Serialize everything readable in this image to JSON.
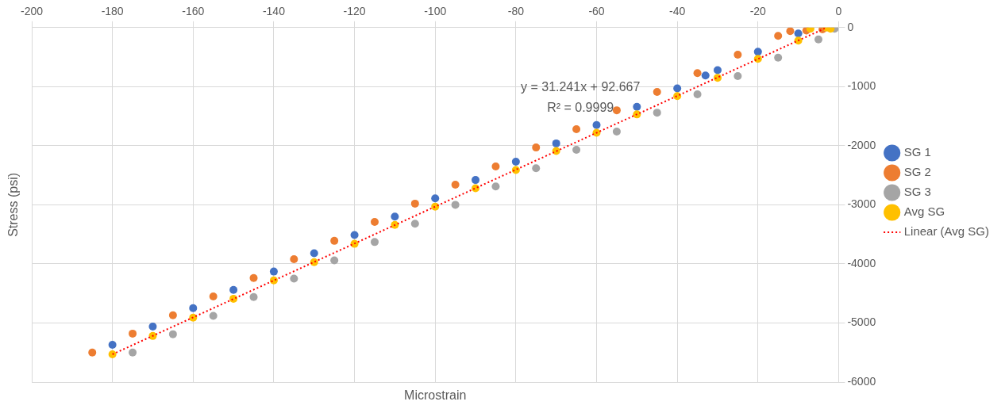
{
  "chart_data": {
    "type": "scatter",
    "xlabel": "Microstrain",
    "ylabel": "Stress (psi)",
    "xlim": [
      -200,
      0
    ],
    "xticks": [
      -200,
      -180,
      -160,
      -140,
      -120,
      -100,
      -80,
      -60,
      -40,
      -20,
      0
    ],
    "ylim": [
      -6000,
      0
    ],
    "yticks": [
      -6000,
      -5000,
      -4000,
      -3000,
      -2000,
      -1000,
      0
    ],
    "grid": true,
    "legend": "right",
    "marker": "circle",
    "annotations": [
      "y = 31.241x + 92.667",
      "R² = 0.9999"
    ],
    "series": [
      {
        "name": "SG 1",
        "color": "#4472c4",
        "x": [
          -180,
          -170,
          -160,
          -150,
          -140,
          -130,
          -120,
          -110,
          -100,
          -90,
          -80,
          -70,
          -60,
          -50,
          -40,
          -33,
          -30,
          -20,
          -10
        ],
        "values": [
          -5370,
          -5060,
          -4750,
          -4440,
          -4130,
          -3820,
          -3510,
          -3200,
          -2890,
          -2580,
          -2270,
          -1960,
          -1650,
          -1340,
          -1030,
          -810,
          -720,
          -410,
          -100
        ]
      },
      {
        "name": "SG 2",
        "color": "#ed7d31",
        "x": [
          -185,
          -175,
          -165,
          -155,
          -145,
          -135,
          -125,
          -115,
          -105,
          -95,
          -85,
          -75,
          -65,
          -55,
          -45,
          -35,
          -25,
          -15,
          -12,
          -8,
          -4
        ],
        "values": [
          -5500,
          -5180,
          -4870,
          -4550,
          -4240,
          -3920,
          -3610,
          -3290,
          -2980,
          -2660,
          -2350,
          -2030,
          -1720,
          -1400,
          -1090,
          -770,
          -460,
          -140,
          -60,
          -50,
          -30
        ]
      },
      {
        "name": "SG 3",
        "color": "#a5a5a5",
        "x": [
          -175,
          -165,
          -155,
          -145,
          -135,
          -125,
          -115,
          -105,
          -95,
          -85,
          -75,
          -65,
          -55,
          -45,
          -35,
          -25,
          -15,
          -5,
          -1
        ],
        "values": [
          -5500,
          -5190,
          -4880,
          -4560,
          -4250,
          -3940,
          -3630,
          -3320,
          -3000,
          -2690,
          -2380,
          -2070,
          -1760,
          -1440,
          -1130,
          -820,
          -510,
          -200,
          -20
        ]
      },
      {
        "name": "Avg SG",
        "color": "#ffc000",
        "x": [
          -180,
          -170,
          -160,
          -150,
          -140,
          -130,
          -120,
          -110,
          -100,
          -90,
          -80,
          -70,
          -60,
          -50,
          -40,
          -30,
          -20,
          -7,
          -10,
          -3,
          -2
        ],
        "values": [
          -5530,
          -5220,
          -4910,
          -4590,
          -4280,
          -3970,
          -3660,
          -3340,
          -3030,
          -2720,
          -2410,
          -2090,
          -1780,
          -1470,
          -1160,
          -850,
          -530,
          -20,
          -220,
          0,
          -20
        ]
      },
      {
        "name": "Linear (Avg SG)",
        "type": "line",
        "color": "#ff0000",
        "line_style": "dotted",
        "marker": "none",
        "x": [
          -180,
          -3
        ],
        "values": [
          -5530,
          0
        ]
      }
    ]
  }
}
